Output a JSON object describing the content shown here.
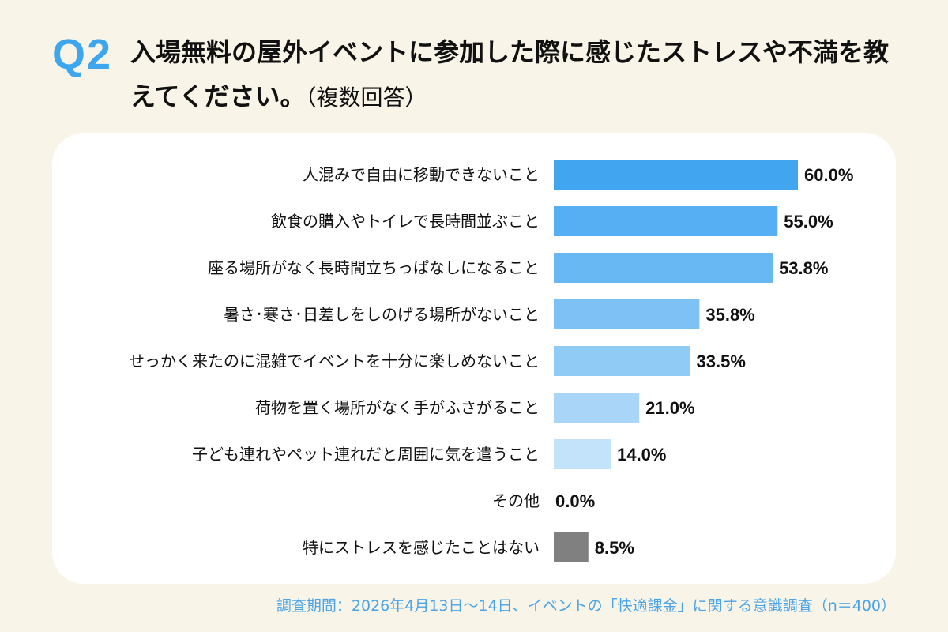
{
  "header": {
    "question_number": "Q2",
    "title": "入場無料の屋外イベントに参加した際に感じたストレスや不満を教えてください。",
    "title_suffix": "（複数回答）"
  },
  "chart_data": {
    "type": "bar",
    "orientation": "horizontal",
    "unit": "%",
    "xlim": [
      0,
      60
    ],
    "grid": false,
    "categories": [
      "人混みで自由に移動できないこと",
      "飲食の購入やトイレで長時間並ぶこと",
      "座る場所がなく長時間立ちっぱなしになること",
      "暑さ･寒さ･日差しをしのげる場所がないこと",
      "せっかく来たのに混雑でイベントを十分に楽しめないこと",
      "荷物を置く場所がなく手がふさがること",
      "子ども連れやペット連れだと周囲に気を遣うこと",
      "その他",
      "特にストレスを感じたことはない"
    ],
    "values": [
      60.0,
      55.0,
      53.8,
      35.8,
      33.5,
      21.0,
      14.0,
      0.0,
      8.5
    ],
    "labels": [
      "60.0%",
      "55.0%",
      "53.8%",
      "35.8%",
      "33.5%",
      "21.0%",
      "14.0%",
      "0.0%",
      "8.5%"
    ],
    "colors": [
      "#42a5f0",
      "#55aff2",
      "#67b8f3",
      "#7ec2f5",
      "#90cbf6",
      "#a9d6f8",
      "#c2e3fa",
      "#c2e3fa",
      "#808080"
    ]
  },
  "footer": {
    "note": "調査期間：2026年4月13日～14日、イベントの「快適課金」に関する意識調査（n＝400）"
  }
}
